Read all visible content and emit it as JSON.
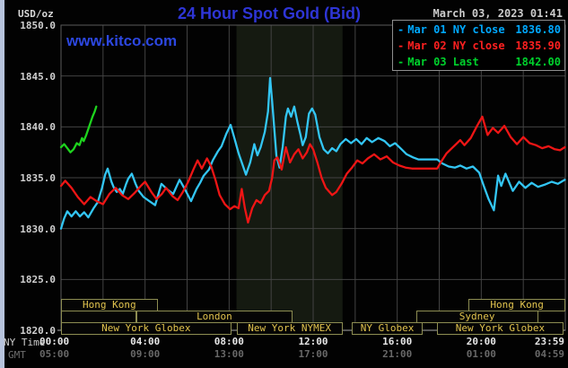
{
  "header": {
    "units_label": "USD/oz",
    "title": "24 Hour Spot Gold (Bid)",
    "datetime": "March 03, 2023 01:41",
    "watermark": "www.kitco.com"
  },
  "colors": {
    "title_blue": "#2e35d6",
    "watermark_blue": "#2c47e0",
    "datetime_gray": "#cccccc",
    "gridline": "#434343",
    "plot_border": "#5a5a5a",
    "axis_bottom_line": "#a8a8a8",
    "nymex_shade": "#151a11",
    "session_border": "#8d8d52",
    "session_text": "#e2c44e",
    "mar01_cyan": "#33c6f4",
    "mar02_red": "#ee1515",
    "mar03_green": "#1ed41e"
  },
  "legend": [
    {
      "dash": "-",
      "label": "Mar 01 NY close",
      "value": "1836.80",
      "color": "#00a8ff"
    },
    {
      "dash": "-",
      "label": "Mar 02 NY close",
      "value": "1835.90",
      "color": "#ff2020"
    },
    {
      "dash": "-",
      "label": "Mar 03 Last",
      "value": "1842.00",
      "color": "#00d22c"
    }
  ],
  "axes": {
    "y_ticks": [
      "1850.0",
      "1845.0",
      "1840.0",
      "1835.0",
      "1830.0",
      "1825.0",
      "1820.0"
    ],
    "x_row1_label": "NY Time",
    "x_row2_label": "GMT",
    "x_ticks": [
      {
        "ny": "00:00",
        "gmt": "05:00",
        "h": 0,
        "align": "left"
      },
      {
        "ny": "04:00",
        "gmt": "09:00",
        "h": 4,
        "align": "center"
      },
      {
        "ny": "08:00",
        "gmt": "13:00",
        "h": 8,
        "align": "center"
      },
      {
        "ny": "12:00",
        "gmt": "17:00",
        "h": 12,
        "align": "center"
      },
      {
        "ny": "16:00",
        "gmt": "21:00",
        "h": 16,
        "align": "center"
      },
      {
        "ny": "20:00",
        "gmt": "01:00",
        "h": 20,
        "align": "center"
      },
      {
        "ny": "23:59",
        "gmt": "04:59",
        "h": 23.98,
        "align": "right"
      }
    ]
  },
  "sessions": [
    {
      "row": 0,
      "label": "Hong Kong",
      "start_h": 0,
      "end_h": 4.6
    },
    {
      "row": 0,
      "label": "Hong Kong",
      "start_h": 19.4,
      "end_h": 24
    },
    {
      "row": 1,
      "label": "",
      "start_h": 0,
      "end_h": 3.6
    },
    {
      "row": 1,
      "label": "London",
      "start_h": 3.6,
      "end_h": 11.0
    },
    {
      "row": 1,
      "label": "Sydney",
      "start_h": 16.9,
      "end_h": 22.7
    },
    {
      "row": 2,
      "label": "New York Globex",
      "start_h": 0,
      "end_h": 8.1
    },
    {
      "row": 2,
      "label": "New York NYMEX",
      "start_h": 8.35,
      "end_h": 13.4
    },
    {
      "row": 2,
      "label": "NY Globex",
      "start_h": 13.85,
      "end_h": 17.2
    },
    {
      "row": 2,
      "label": "New York Globex",
      "start_h": 17.9,
      "end_h": 23.9
    }
  ],
  "chart_data": {
    "type": "line",
    "title": "24 Hour Spot Gold (Bid)",
    "xlabel": "NY Time (hours)",
    "ylabel": "USD/oz",
    "xlim": [
      0,
      24
    ],
    "ylim": [
      1820,
      1850
    ],
    "y_gridline_step": 5,
    "x_gridline_step_hours": 2,
    "grid": true,
    "legend_position": "top-right",
    "shaded_region_hours": [
      8.35,
      13.4
    ],
    "series": [
      {
        "name": "Mar 01",
        "color": "#33c6f4",
        "points": [
          [
            0,
            1830.0
          ],
          [
            0.15,
            1831.0
          ],
          [
            0.3,
            1831.7
          ],
          [
            0.5,
            1831.2
          ],
          [
            0.7,
            1831.7
          ],
          [
            0.9,
            1831.2
          ],
          [
            1.1,
            1831.6
          ],
          [
            1.3,
            1831.1
          ],
          [
            1.55,
            1832.0
          ],
          [
            1.75,
            1832.6
          ],
          [
            1.95,
            1834.0
          ],
          [
            2.1,
            1835.3
          ],
          [
            2.22,
            1835.9
          ],
          [
            2.4,
            1834.6
          ],
          [
            2.52,
            1834.0
          ],
          [
            2.65,
            1833.6
          ],
          [
            2.8,
            1833.9
          ],
          [
            2.94,
            1833.4
          ],
          [
            3.1,
            1834.4
          ],
          [
            3.2,
            1834.9
          ],
          [
            3.37,
            1835.4
          ],
          [
            3.55,
            1834.4
          ],
          [
            3.7,
            1833.7
          ],
          [
            3.93,
            1833.1
          ],
          [
            4.2,
            1832.7
          ],
          [
            4.48,
            1832.3
          ],
          [
            4.78,
            1834.4
          ],
          [
            5.08,
            1833.8
          ],
          [
            5.34,
            1833.4
          ],
          [
            5.64,
            1834.8
          ],
          [
            5.89,
            1833.9
          ],
          [
            6.19,
            1832.7
          ],
          [
            6.45,
            1833.9
          ],
          [
            6.62,
            1834.5
          ],
          [
            6.79,
            1835.2
          ],
          [
            7.04,
            1835.8
          ],
          [
            7.22,
            1836.7
          ],
          [
            7.47,
            1837.6
          ],
          [
            7.64,
            1838.1
          ],
          [
            7.86,
            1839.3
          ],
          [
            8.07,
            1840.2
          ],
          [
            8.25,
            1838.9
          ],
          [
            8.45,
            1837.4
          ],
          [
            8.65,
            1836.2
          ],
          [
            8.8,
            1835.3
          ],
          [
            9.0,
            1836.5
          ],
          [
            9.2,
            1838.3
          ],
          [
            9.35,
            1837.2
          ],
          [
            9.5,
            1838.0
          ],
          [
            9.7,
            1839.5
          ],
          [
            9.85,
            1841.5
          ],
          [
            9.95,
            1844.8
          ],
          [
            10.05,
            1842.5
          ],
          [
            10.15,
            1839.8
          ],
          [
            10.25,
            1837.2
          ],
          [
            10.4,
            1836.0
          ],
          [
            10.55,
            1838.0
          ],
          [
            10.7,
            1841.0
          ],
          [
            10.8,
            1841.8
          ],
          [
            10.95,
            1841.0
          ],
          [
            11.1,
            1842.0
          ],
          [
            11.25,
            1840.5
          ],
          [
            11.4,
            1839.2
          ],
          [
            11.5,
            1838.2
          ],
          [
            11.65,
            1839.0
          ],
          [
            11.8,
            1841.3
          ],
          [
            11.95,
            1841.8
          ],
          [
            12.1,
            1841.2
          ],
          [
            12.3,
            1839.0
          ],
          [
            12.5,
            1837.8
          ],
          [
            12.7,
            1837.4
          ],
          [
            12.9,
            1837.9
          ],
          [
            13.1,
            1837.6
          ],
          [
            13.3,
            1838.3
          ],
          [
            13.55,
            1838.8
          ],
          [
            13.8,
            1838.4
          ],
          [
            14.05,
            1838.8
          ],
          [
            14.3,
            1838.3
          ],
          [
            14.55,
            1838.9
          ],
          [
            14.8,
            1838.5
          ],
          [
            15.1,
            1838.9
          ],
          [
            15.4,
            1838.6
          ],
          [
            15.65,
            1838.1
          ],
          [
            15.9,
            1838.4
          ],
          [
            16.15,
            1837.9
          ],
          [
            16.45,
            1837.3
          ],
          [
            16.75,
            1837.0
          ],
          [
            17.0,
            1836.8
          ],
          [
            17.9,
            1836.8
          ],
          [
            18.15,
            1836.4
          ],
          [
            18.45,
            1836.1
          ],
          [
            18.75,
            1836.0
          ],
          [
            19.0,
            1836.2
          ],
          [
            19.3,
            1835.9
          ],
          [
            19.6,
            1836.1
          ],
          [
            19.9,
            1835.5
          ],
          [
            20.1,
            1834.3
          ],
          [
            20.35,
            1832.9
          ],
          [
            20.6,
            1831.8
          ],
          [
            20.8,
            1835.2
          ],
          [
            20.95,
            1834.2
          ],
          [
            21.15,
            1835.4
          ],
          [
            21.5,
            1833.7
          ],
          [
            21.8,
            1834.6
          ],
          [
            22.1,
            1834.0
          ],
          [
            22.4,
            1834.5
          ],
          [
            22.7,
            1834.1
          ],
          [
            23.0,
            1834.3
          ],
          [
            23.35,
            1834.6
          ],
          [
            23.65,
            1834.4
          ],
          [
            23.98,
            1834.8
          ]
        ]
      },
      {
        "name": "Mar 02",
        "color": "#ee1515",
        "points": [
          [
            0,
            1834.2
          ],
          [
            0.2,
            1834.7
          ],
          [
            0.5,
            1834.0
          ],
          [
            0.8,
            1833.1
          ],
          [
            1.1,
            1832.4
          ],
          [
            1.4,
            1833.1
          ],
          [
            1.7,
            1832.7
          ],
          [
            2.0,
            1832.4
          ],
          [
            2.3,
            1833.4
          ],
          [
            2.6,
            1834.0
          ],
          [
            2.9,
            1833.3
          ],
          [
            3.2,
            1832.9
          ],
          [
            3.5,
            1833.5
          ],
          [
            3.8,
            1834.2
          ],
          [
            4.0,
            1834.6
          ],
          [
            4.3,
            1833.6
          ],
          [
            4.55,
            1832.9
          ],
          [
            4.8,
            1833.4
          ],
          [
            5.0,
            1834.0
          ],
          [
            5.3,
            1833.2
          ],
          [
            5.55,
            1832.8
          ],
          [
            5.8,
            1833.6
          ],
          [
            6.05,
            1834.6
          ],
          [
            6.3,
            1835.8
          ],
          [
            6.5,
            1836.7
          ],
          [
            6.7,
            1835.9
          ],
          [
            6.95,
            1836.9
          ],
          [
            7.15,
            1836.1
          ],
          [
            7.35,
            1834.8
          ],
          [
            7.55,
            1833.3
          ],
          [
            7.8,
            1832.4
          ],
          [
            8.05,
            1831.9
          ],
          [
            8.25,
            1832.2
          ],
          [
            8.45,
            1832.0
          ],
          [
            8.6,
            1833.9
          ],
          [
            8.75,
            1832.0
          ],
          [
            8.9,
            1830.6
          ],
          [
            9.1,
            1832.0
          ],
          [
            9.3,
            1832.8
          ],
          [
            9.5,
            1832.5
          ],
          [
            9.7,
            1833.3
          ],
          [
            9.9,
            1833.7
          ],
          [
            10.05,
            1835.0
          ],
          [
            10.15,
            1836.7
          ],
          [
            10.3,
            1837.0
          ],
          [
            10.5,
            1835.8
          ],
          [
            10.7,
            1838.0
          ],
          [
            10.9,
            1836.5
          ],
          [
            11.1,
            1837.3
          ],
          [
            11.3,
            1837.8
          ],
          [
            11.5,
            1836.9
          ],
          [
            11.7,
            1837.5
          ],
          [
            11.85,
            1838.3
          ],
          [
            12.0,
            1837.8
          ],
          [
            12.2,
            1836.5
          ],
          [
            12.4,
            1835.0
          ],
          [
            12.6,
            1834.0
          ],
          [
            12.9,
            1833.3
          ],
          [
            13.1,
            1833.6
          ],
          [
            13.35,
            1834.4
          ],
          [
            13.6,
            1835.4
          ],
          [
            13.85,
            1836.0
          ],
          [
            14.1,
            1836.7
          ],
          [
            14.35,
            1836.4
          ],
          [
            14.6,
            1836.9
          ],
          [
            14.9,
            1837.3
          ],
          [
            15.2,
            1836.8
          ],
          [
            15.5,
            1837.1
          ],
          [
            15.8,
            1836.5
          ],
          [
            16.1,
            1836.2
          ],
          [
            16.4,
            1836.0
          ],
          [
            16.7,
            1835.9
          ],
          [
            17.0,
            1835.9
          ],
          [
            17.9,
            1835.9
          ],
          [
            18.1,
            1836.6
          ],
          [
            18.35,
            1837.4
          ],
          [
            18.6,
            1837.9
          ],
          [
            19.0,
            1838.7
          ],
          [
            19.2,
            1838.2
          ],
          [
            19.5,
            1838.9
          ],
          [
            19.8,
            1840.1
          ],
          [
            20.05,
            1841.0
          ],
          [
            20.3,
            1839.2
          ],
          [
            20.55,
            1839.9
          ],
          [
            20.8,
            1839.4
          ],
          [
            21.1,
            1840.1
          ],
          [
            21.4,
            1839.0
          ],
          [
            21.7,
            1838.3
          ],
          [
            22.0,
            1839.0
          ],
          [
            22.3,
            1838.4
          ],
          [
            22.6,
            1838.2
          ],
          [
            22.9,
            1837.9
          ],
          [
            23.2,
            1838.1
          ],
          [
            23.5,
            1837.8
          ],
          [
            23.75,
            1837.7
          ],
          [
            23.98,
            1838.0
          ]
        ]
      },
      {
        "name": "Mar 03",
        "color": "#1ed41e",
        "points": [
          [
            0,
            1838.0
          ],
          [
            0.15,
            1838.3
          ],
          [
            0.3,
            1837.9
          ],
          [
            0.45,
            1837.5
          ],
          [
            0.6,
            1837.8
          ],
          [
            0.75,
            1838.4
          ],
          [
            0.88,
            1838.2
          ],
          [
            1.0,
            1838.9
          ],
          [
            1.08,
            1838.6
          ],
          [
            1.2,
            1839.2
          ],
          [
            1.35,
            1840.1
          ],
          [
            1.5,
            1841.0
          ],
          [
            1.6,
            1841.5
          ],
          [
            1.68,
            1842.0
          ]
        ]
      }
    ]
  }
}
